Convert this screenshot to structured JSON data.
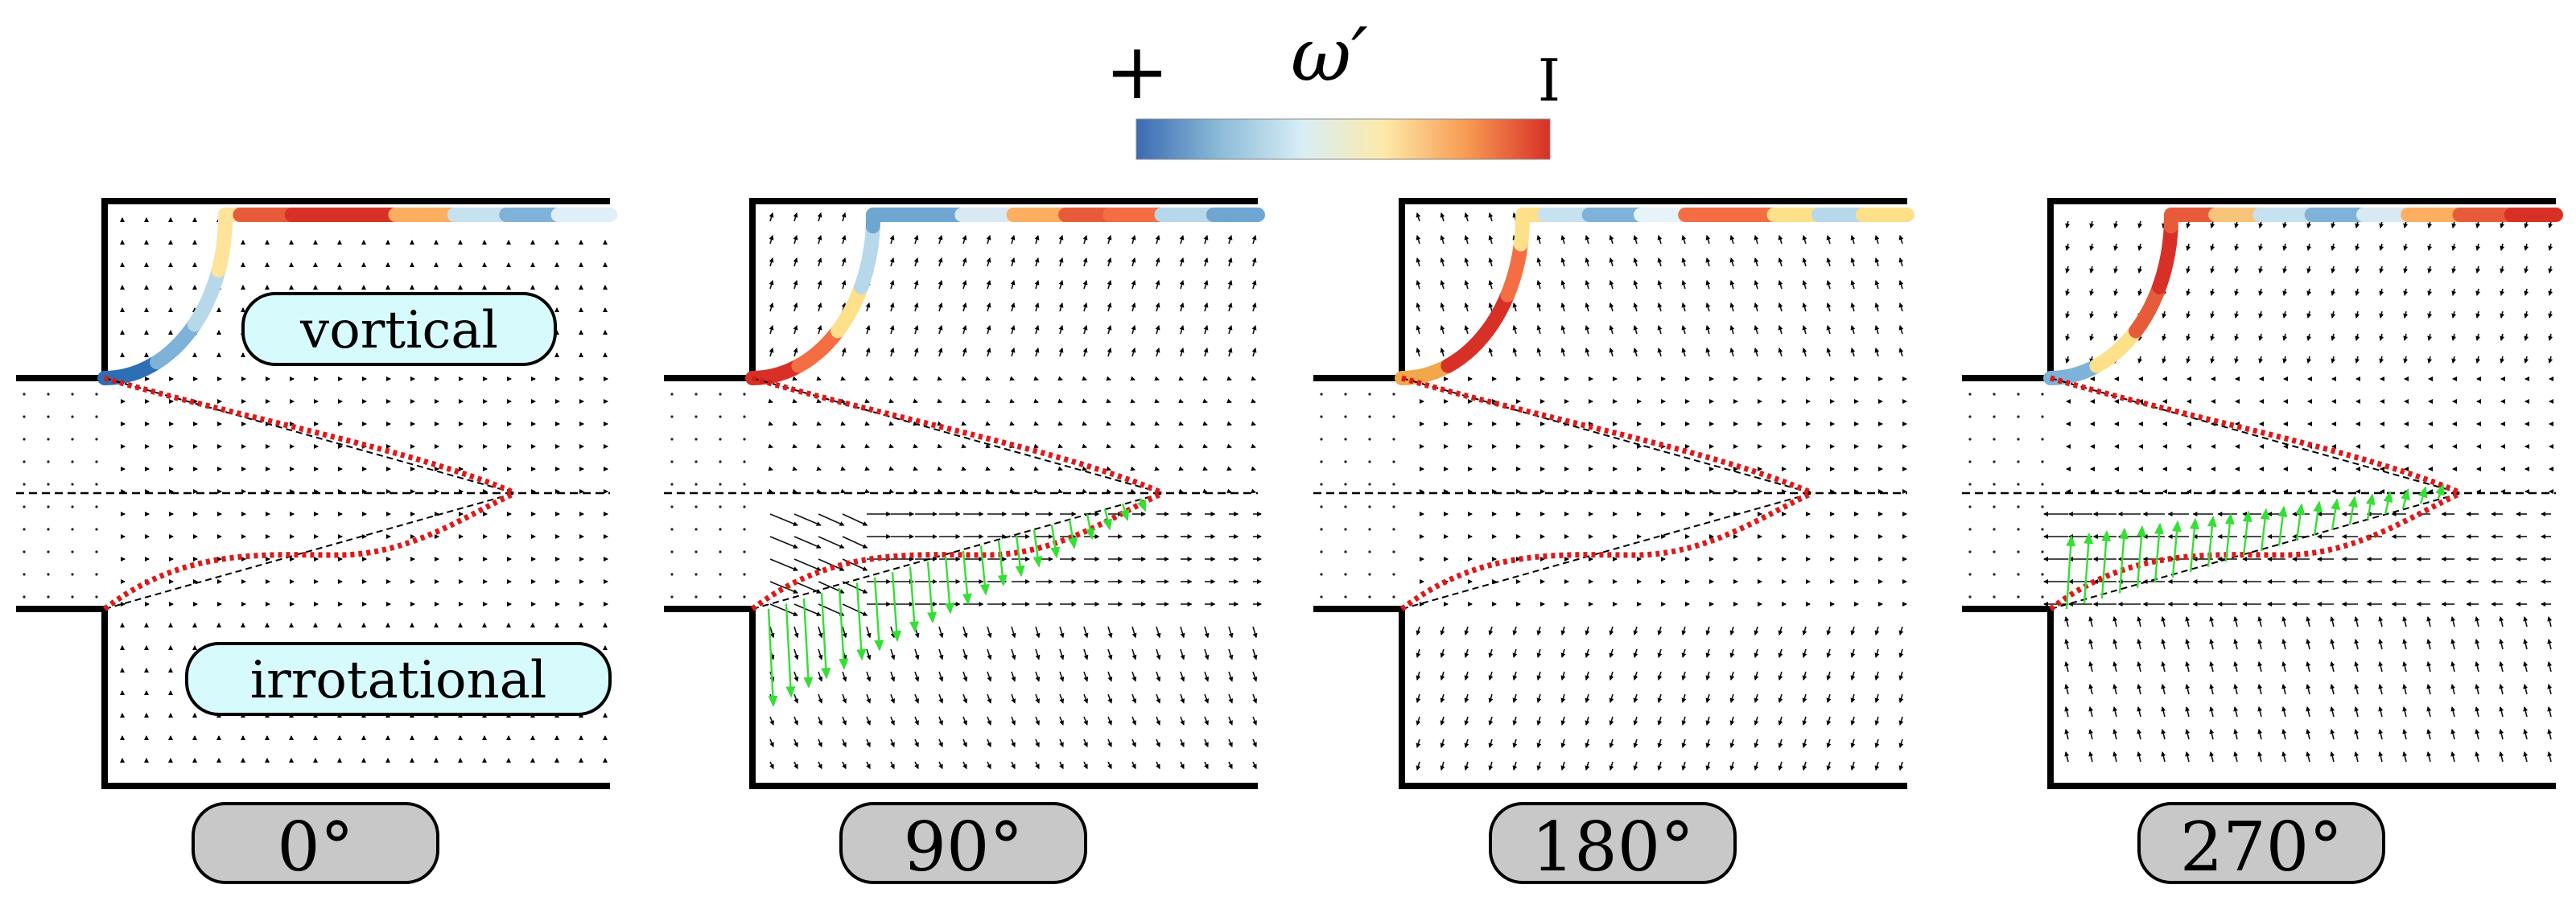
{
  "colorbar": {
    "symbol": "ω′",
    "min_label": "+",
    "max_label": "I",
    "colors": [
      "#3a6bb2",
      "#8bbad8",
      "#d7eef6",
      "#fde9a8",
      "#f79a52",
      "#d73027"
    ]
  },
  "panels": [
    {
      "phase_label": "0°",
      "region_labels": {
        "upper": "vortical",
        "lower": "irrotational"
      },
      "shear_layer_colors": [
        "#2c6fb5",
        "#7fb2d8",
        "#b7d7ea",
        "#fee39a",
        "#e85b3a",
        "#d73027",
        "#d73027",
        "#fdae61",
        "#c6e2f0",
        "#7fb2d8",
        "#deeff7"
      ],
      "velocity_field": "weak",
      "acoustic_vectors": false
    },
    {
      "phase_label": "90°",
      "region_labels": null,
      "shear_layer_colors": [
        "#d73027",
        "#f46d43",
        "#fee08b",
        "#b7d7ea",
        "#6ea6d1",
        "#6ea6d1",
        "#d8e9f2",
        "#fdae61",
        "#e85b3a",
        "#f46d43",
        "#b7d7ea",
        "#6ea6d1"
      ],
      "velocity_field": "strong-lower-inflow",
      "acoustic_vectors": true
    },
    {
      "phase_label": "180°",
      "region_labels": null,
      "shear_layer_colors": [
        "#f0a84a",
        "#d73027",
        "#d73027",
        "#f46d43",
        "#fee08b",
        "#c6e2f0",
        "#7fb2d8",
        "#e6f3f8",
        "#f46d43",
        "#f46d43",
        "#fee08b",
        "#b7d7ea",
        "#fee08b"
      ],
      "velocity_field": "moderate",
      "acoustic_vectors": false
    },
    {
      "phase_label": "270°",
      "region_labels": null,
      "shear_layer_colors": [
        "#7fb2d8",
        "#fee08b",
        "#e85b3a",
        "#d73027",
        "#e85b3a",
        "#f8c47a",
        "#c6e2f0",
        "#7fb2d8",
        "#d8e9f2",
        "#fdae61",
        "#e85b3a",
        "#d73027"
      ],
      "velocity_field": "strong-lower-outflow",
      "acoustic_vectors": true
    }
  ]
}
